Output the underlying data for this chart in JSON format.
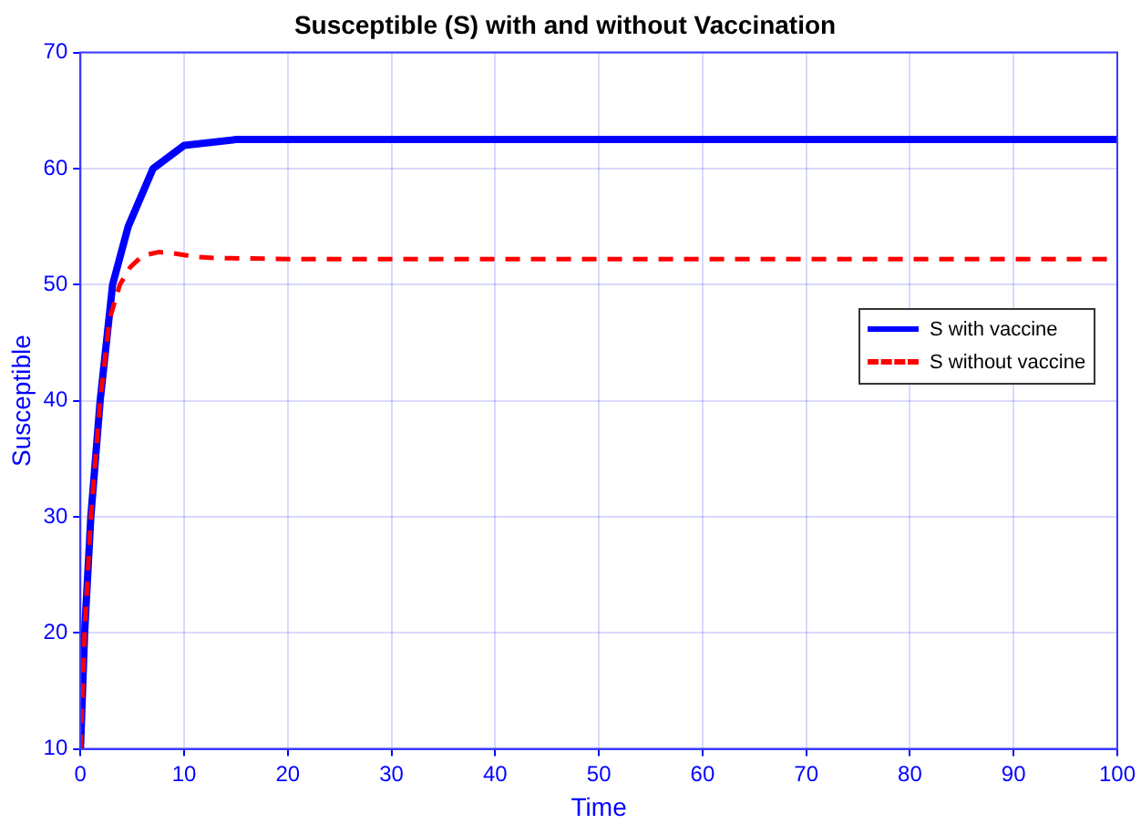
{
  "chart_data": {
    "type": "line",
    "title": "Susceptible (S) with and without Vaccination",
    "xlabel": "Time",
    "ylabel": "Susceptible",
    "xlim": [
      0,
      100
    ],
    "xticks": [
      0,
      10,
      20,
      30,
      40,
      50,
      60,
      70,
      80,
      90,
      100
    ],
    "ylim": [
      10,
      70
    ],
    "yticks": [
      10,
      20,
      30,
      40,
      50,
      60,
      70
    ],
    "grid": true,
    "legend": "right",
    "marker": "none",
    "series": [
      {
        "name": "S with vaccine",
        "color": "#0000ff",
        "line_style": "solid",
        "x": [
          0,
          0.4,
          1,
          1.9,
          3.1,
          4.6,
          7,
          10,
          15,
          20,
          30,
          50,
          70,
          100
        ],
        "values": [
          10,
          20,
          30,
          40,
          50,
          55,
          60,
          62,
          62.5,
          62.5,
          62.5,
          62.5,
          62.5,
          62.5
        ]
      },
      {
        "name": "S without vaccine",
        "color": "#ff0000",
        "line_style": "dashed",
        "x": [
          0,
          0.4,
          1,
          1.9,
          2.8,
          3.8,
          4.8,
          6,
          7.5,
          9,
          11,
          13,
          20,
          30,
          50,
          70,
          100
        ],
        "values": [
          10,
          20,
          30,
          40,
          47,
          50,
          51.5,
          52.5,
          52.8,
          52.7,
          52.4,
          52.3,
          52.2,
          52.2,
          52.2,
          52.2,
          52.2
        ]
      }
    ]
  }
}
